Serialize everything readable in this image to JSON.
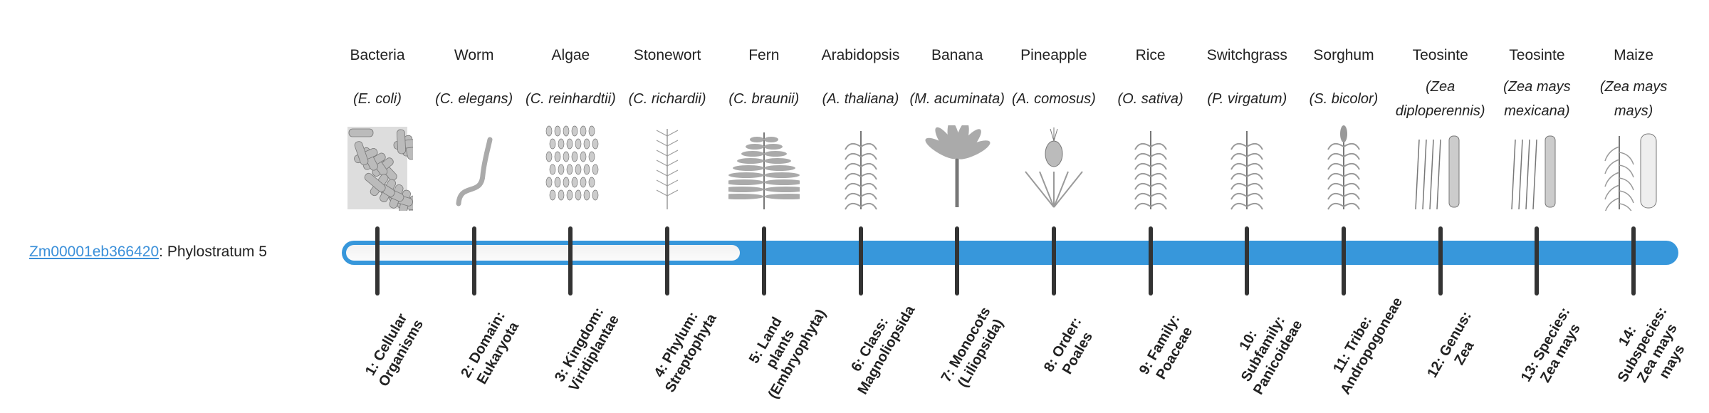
{
  "gene": {
    "id": "Zm00001eb366420",
    "suffix": ": Phylostratum 5"
  },
  "phylostratum": {
    "value": 5,
    "total": 14
  },
  "colors": {
    "accent": "#3797db",
    "empty": "#f4f4f4",
    "tick": "#333333",
    "link": "#3a8fd9"
  },
  "columns": [
    {
      "common": "Bacteria",
      "scientific": "(E. coli)",
      "icon": "bacteria-icon",
      "stratum": "1: Cellular Organisms"
    },
    {
      "common": "Worm",
      "scientific": "(C. elegans)",
      "icon": "worm-icon",
      "stratum": "2: Domain: Eukaryota"
    },
    {
      "common": "Algae",
      "scientific": "(C. reinhardtii)",
      "icon": "algae-icon",
      "stratum": "3: Kingdom: Viridiplantae"
    },
    {
      "common": "Stonewort",
      "scientific": "(C. richardii)",
      "icon": "stonewort-icon",
      "stratum": "4: Phylum: Streptophyta"
    },
    {
      "common": "Fern",
      "scientific": "(C. braunii)",
      "icon": "fern-icon",
      "stratum": "5: Land plants (Embryophyta)"
    },
    {
      "common": "Arabidopsis",
      "scientific": "(A. thaliana)",
      "icon": "arabidopsis-icon",
      "stratum": "6: Class: Magnoliopsida"
    },
    {
      "common": "Banana",
      "scientific": "(M. acuminata)",
      "icon": "banana-icon",
      "stratum": "7: Monocots (Liliopsida)"
    },
    {
      "common": "Pineapple",
      "scientific": "(A. comosus)",
      "icon": "pineapple-icon",
      "stratum": "8: Order: Poales"
    },
    {
      "common": "Rice",
      "scientific": "(O. sativa)",
      "icon": "rice-icon",
      "stratum": "9: Family: Poaceae"
    },
    {
      "common": "Switchgrass",
      "scientific": "(P. virgatum)",
      "icon": "switchgrass-icon",
      "stratum": "10: Subfamily: Panicoideae"
    },
    {
      "common": "Sorghum",
      "scientific": "(S. bicolor)",
      "icon": "sorghum-icon",
      "stratum": "11: Tribe: Andropogoneae"
    },
    {
      "common": "Teosinte",
      "scientific": "(Zea diploperennis)",
      "icon": "teosinte-icon",
      "stratum": "12: Genus: Zea"
    },
    {
      "common": "Teosinte",
      "scientific": "(Zea mays mexicana)",
      "icon": "teosinte-icon",
      "stratum": "13: Species: Zea mays"
    },
    {
      "common": "Maize",
      "scientific": "(Zea mays mays)",
      "icon": "maize-icon",
      "stratum": "14: Subspecies: Zea mays mays"
    }
  ]
}
